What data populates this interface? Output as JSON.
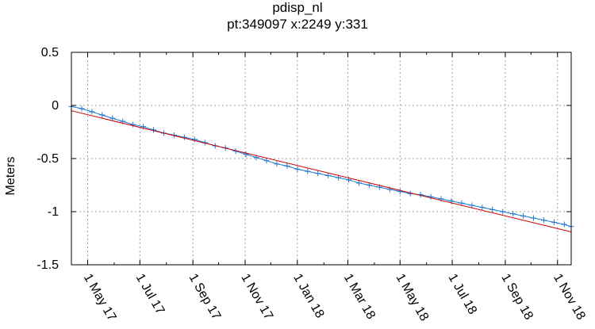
{
  "header": {
    "title": "pdisp_nl",
    "subtitle": "pt:349097  x:2249  y:331"
  },
  "chart_data": {
    "type": "line",
    "title": "pdisp_nl",
    "subtitle": "pt:349097  x:2249  y:331",
    "xlabel": "",
    "ylabel": "Meters",
    "ylim": [
      -1.5,
      0.5
    ],
    "xlim": [
      "2017-04-12",
      "2018-11-17"
    ],
    "yticks": [
      0.5,
      0,
      -0.5,
      -1,
      -1.5
    ],
    "ytick_labels": [
      "0.5",
      "0",
      "-0.5",
      "-1",
      "-1.5"
    ],
    "xticks": [
      "2017-05-01",
      "2017-07-01",
      "2017-09-01",
      "2017-11-01",
      "2018-01-01",
      "2018-03-01",
      "2018-05-01",
      "2018-07-01",
      "2018-09-01",
      "2018-11-01"
    ],
    "xtick_labels": [
      "1 May 17",
      "1 Jul 17",
      "1 Sep 17",
      "1 Nov 17",
      "1 Jan 18",
      "1 Mar 18",
      "1 May 18",
      "1 Jul 18",
      "1 Sep 18",
      "1 Nov 18"
    ],
    "grid": true,
    "series": [
      {
        "color": "#1f77d0",
        "marker": "+",
        "x": [
          "2017-04-12",
          "2017-04-24",
          "2017-05-06",
          "2017-05-18",
          "2017-05-30",
          "2017-06-11",
          "2017-06-23",
          "2017-07-05",
          "2017-07-17",
          "2017-07-29",
          "2017-08-10",
          "2017-08-22",
          "2017-09-03",
          "2017-09-15",
          "2017-09-27",
          "2017-10-09",
          "2017-10-21",
          "2017-11-02",
          "2017-11-14",
          "2017-11-26",
          "2017-12-08",
          "2017-12-20",
          "2018-01-01",
          "2018-01-13",
          "2018-01-25",
          "2018-02-06",
          "2018-02-18",
          "2018-03-02",
          "2018-03-14",
          "2018-03-26",
          "2018-04-07",
          "2018-04-19",
          "2018-05-01",
          "2018-05-13",
          "2018-05-25",
          "2018-06-06",
          "2018-06-18",
          "2018-06-30",
          "2018-07-12",
          "2018-07-24",
          "2018-08-05",
          "2018-08-17",
          "2018-08-29",
          "2018-09-10",
          "2018-09-22",
          "2018-10-04",
          "2018-10-16",
          "2018-10-28",
          "2018-11-09",
          "2018-11-17"
        ],
        "values": [
          -0.01,
          -0.03,
          -0.06,
          -0.09,
          -0.12,
          -0.15,
          -0.18,
          -0.2,
          -0.23,
          -0.26,
          -0.28,
          -0.3,
          -0.32,
          -0.35,
          -0.38,
          -0.4,
          -0.43,
          -0.46,
          -0.49,
          -0.52,
          -0.55,
          -0.57,
          -0.6,
          -0.62,
          -0.64,
          -0.66,
          -0.68,
          -0.7,
          -0.73,
          -0.75,
          -0.77,
          -0.79,
          -0.81,
          -0.83,
          -0.84,
          -0.86,
          -0.88,
          -0.9,
          -0.92,
          -0.94,
          -0.96,
          -0.98,
          -1.0,
          -1.02,
          -1.04,
          -1.06,
          -1.08,
          -1.1,
          -1.12,
          -1.14
        ]
      },
      {
        "color": "#cc0000",
        "x": [
          "2017-04-12",
          "2018-11-17"
        ],
        "values": [
          -0.05,
          -1.19
        ]
      }
    ]
  }
}
